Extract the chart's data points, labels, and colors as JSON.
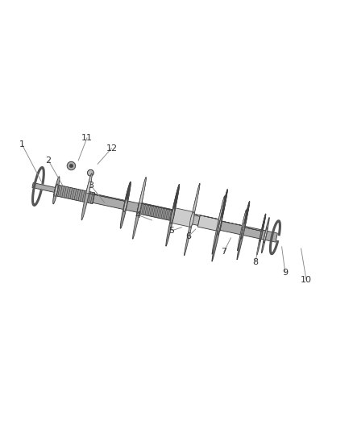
{
  "background_color": "#ffffff",
  "shaft_color": "#888888",
  "shaft_dark": "#333333",
  "shaft_light": "#bbbbbb",
  "gear_face": "#999999",
  "gear_dark": "#444444",
  "gear_light": "#cccccc",
  "gear_mid": "#888888",
  "callout_color": "#888888",
  "text_color": "#333333",
  "callouts": {
    "1": [
      0.06,
      0.7,
      0.115,
      0.595
    ],
    "2": [
      0.135,
      0.655,
      0.175,
      0.585
    ],
    "3": [
      0.255,
      0.585,
      0.295,
      0.535
    ],
    "4": [
      0.39,
      0.5,
      0.43,
      0.485
    ],
    "5": [
      0.485,
      0.455,
      0.515,
      0.465
    ],
    "6": [
      0.535,
      0.44,
      0.555,
      0.46
    ],
    "7": [
      0.635,
      0.395,
      0.655,
      0.435
    ],
    "8": [
      0.725,
      0.365,
      0.735,
      0.42
    ],
    "9": [
      0.81,
      0.335,
      0.8,
      0.41
    ],
    "10": [
      0.87,
      0.315,
      0.855,
      0.405
    ],
    "11": [
      0.245,
      0.72,
      0.22,
      0.655
    ],
    "12": [
      0.315,
      0.69,
      0.275,
      0.645
    ]
  }
}
